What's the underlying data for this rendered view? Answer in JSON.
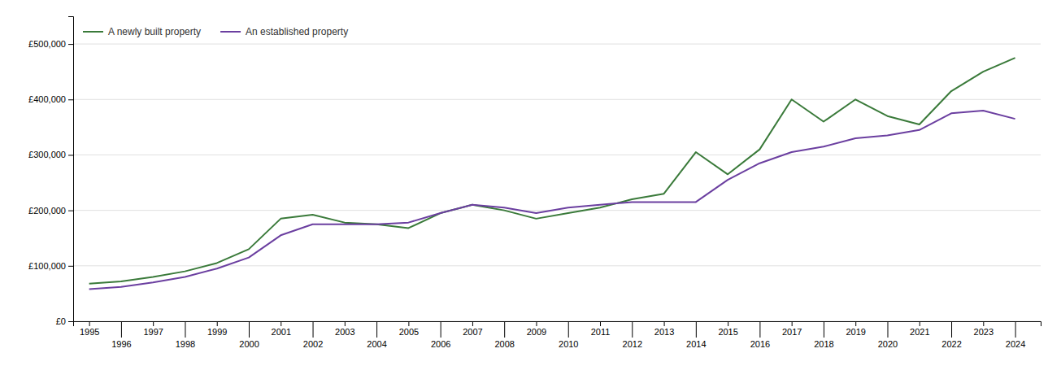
{
  "chart_data": {
    "type": "line",
    "x": [
      1995,
      1996,
      1997,
      1998,
      1999,
      2000,
      2001,
      2002,
      2003,
      2004,
      2005,
      2006,
      2007,
      2008,
      2009,
      2010,
      2011,
      2012,
      2013,
      2014,
      2015,
      2016,
      2017,
      2018,
      2019,
      2020,
      2021,
      2022,
      2023,
      2024
    ],
    "series": [
      {
        "name": "A newly built property",
        "color": "#3a7a3a",
        "values": [
          68000,
          72000,
          80000,
          90000,
          105000,
          130000,
          185000,
          192000,
          178000,
          175000,
          168000,
          195000,
          210000,
          200000,
          185000,
          195000,
          205000,
          220000,
          230000,
          305000,
          265000,
          310000,
          400000,
          360000,
          400000,
          370000,
          355000,
          415000,
          450000,
          475000
        ]
      },
      {
        "name": "An established property",
        "color": "#6b3fa0",
        "values": [
          58000,
          62000,
          70000,
          80000,
          95000,
          115000,
          155000,
          175000,
          175000,
          175000,
          178000,
          195000,
          210000,
          205000,
          195000,
          205000,
          210000,
          215000,
          215000,
          215000,
          255000,
          285000,
          305000,
          315000,
          330000,
          335000,
          345000,
          375000,
          380000,
          365000
        ]
      }
    ],
    "xlim": [
      1994.5,
      2024.8
    ],
    "xticks": [
      1995,
      1996,
      1997,
      1998,
      1999,
      2000,
      2001,
      2002,
      2003,
      2004,
      2005,
      2006,
      2007,
      2008,
      2009,
      2010,
      2011,
      2012,
      2013,
      2014,
      2015,
      2016,
      2017,
      2018,
      2019,
      2020,
      2021,
      2022,
      2023,
      2024
    ],
    "ylim": [
      0,
      550000
    ],
    "yticks": [
      {
        "value": 0,
        "label": "£0"
      },
      {
        "value": 100000,
        "label": "£100,000"
      },
      {
        "value": 200000,
        "label": "£200,000"
      },
      {
        "value": 300000,
        "label": "£300,000"
      },
      {
        "value": 400000,
        "label": "£400,000"
      },
      {
        "value": 500000,
        "label": "£500,000"
      }
    ],
    "grid": true,
    "legend": "upper left"
  }
}
